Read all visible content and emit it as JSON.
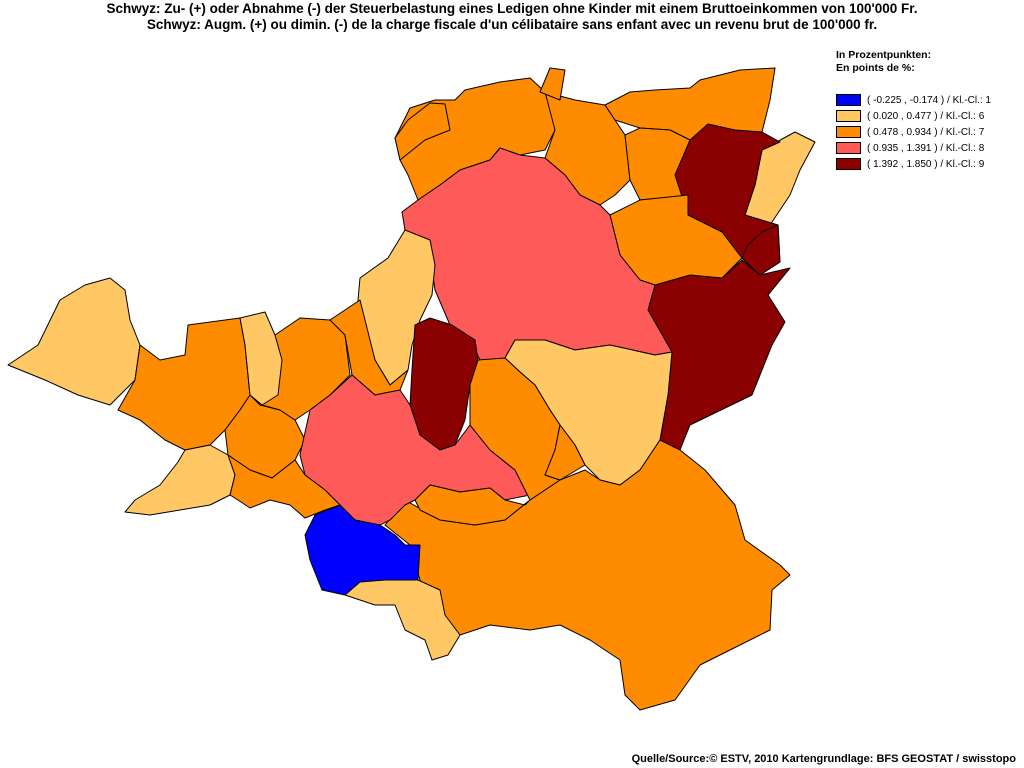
{
  "title_de": "Schwyz: Zu- (+) oder Abnahme (-) der Steuerbelastung eines Ledigen ohne Kinder mit einem Bruttoeinkommen von 100'000 Fr.",
  "title_fr": "Schwyz: Augm. (+) ou dimin. (-) de la charge fiscale d'un célibataire sans enfant avec un revenu brut de 100'000 fr.",
  "legend": {
    "heading_de": "In Prozentpunkten:",
    "heading_fr": "En points de %:",
    "classes": [
      {
        "label": "( -0.225 , -0.174 ) / Kl.-Cl.: 1",
        "color": "#0000ff"
      },
      {
        "label": "( 0.020 , 0.477 ) / Kl.-Cl.: 6",
        "color": "#ffc864"
      },
      {
        "label": "( 0.478 , 0.934 ) / Kl.-Cl.: 7",
        "color": "#ff8c00"
      },
      {
        "label": "( 0.935 , 1.391 ) / Kl.-Cl.: 8",
        "color": "#ff5a5a"
      },
      {
        "label": "( 1.392 , 1.850 ) / Kl.-Cl.: 9",
        "color": "#8b0000"
      }
    ]
  },
  "map": {
    "municipality_classes": [
      7,
      7,
      7,
      7,
      6,
      9,
      9,
      7,
      8,
      6,
      9,
      6,
      7,
      6,
      7,
      7,
      6,
      7,
      7,
      8,
      9,
      7,
      6,
      7,
      7,
      7,
      1,
      6,
      7,
      7
    ]
  },
  "source": "Quelle/Source:© ESTV, 2010 Kartengrundlage: BFS GEOSTAT / swisstopo"
}
